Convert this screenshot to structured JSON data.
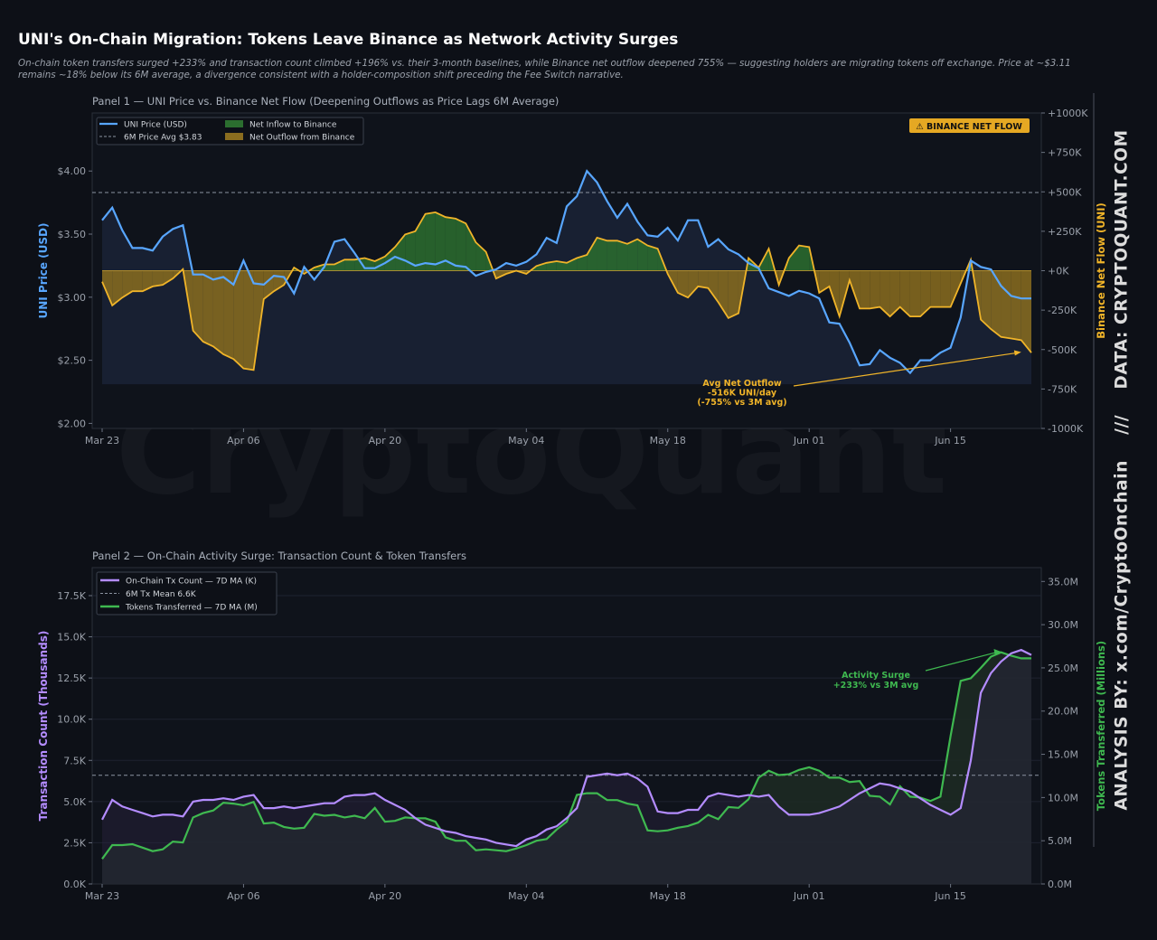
{
  "header": {
    "title": "UNI's On-Chain Migration: Tokens Leave Binance as Network Activity Surges",
    "subtitle_line1": "On-chain token transfers surged +233% and transaction count climbed +196% vs. their 3-month baselines, while Binance net outflow deepened 755% — suggesting holders are migrating tokens off exchange. Price at ~$3.11",
    "subtitle_line2": "remains ~18% below its 6M average, a divergence consistent with a holder-composition shift preceding the Fee Switch narrative."
  },
  "watermark": "CryptoQuant",
  "side_label": {
    "analysis": "ANALYSIS BY: x.com/CryptoOnchain",
    "separator": "///",
    "data": "DATA: CRYPTOQUANT.COM"
  },
  "colors": {
    "background": "#0d1017",
    "panel": "#0f131b",
    "price": "#58a6ff",
    "flow": "#f0b429",
    "inflow_fill": "#2b6e2f",
    "outflow_fill": "#8a6d1f",
    "tx": "#b48cff",
    "tokens": "#3fb950",
    "grid": "#2a2f3a",
    "text": "#9aa0aa"
  },
  "chart_data": [
    {
      "type": "line",
      "panel_title": "Panel 1 — UNI Price vs. Binance Net Flow  (Deepening Outflows as Price Lags 6M Average)",
      "x_tick_labels": [
        "Mar 23",
        "Apr 06",
        "Apr 20",
        "May 04",
        "May 18",
        "Jun 01",
        "Jun 15"
      ],
      "x_range": [
        "2025-03-23",
        "2025-06-22"
      ],
      "ylabel": "UNI Price (USD)",
      "y2label": "Binance Net Flow (UNI)",
      "ylim": [
        1.96,
        4.46
      ],
      "y2lim": [
        -1000,
        1000
      ],
      "y_ticks": [
        "$2.00",
        "$2.50",
        "$3.00",
        "$3.50",
        "$4.00"
      ],
      "y_tick_values": [
        2.0,
        2.5,
        3.0,
        3.5,
        4.0
      ],
      "y2_ticks": [
        "+1000K",
        "+750K",
        "+500K",
        "+250K",
        "+0K",
        "-250K",
        "-500K",
        "-750K",
        "-1000K"
      ],
      "y2_tick_values": [
        1000,
        750,
        500,
        250,
        0,
        -250,
        -500,
        -750,
        -1000
      ],
      "y2_units": "K UNI",
      "badge": "⚠ BINANCE NET FLOW",
      "legend": {
        "placement": "top-left",
        "items": [
          {
            "label": "UNI Price (USD)",
            "kind": "line",
            "color": "#58a6ff"
          },
          {
            "label": "Net Inflow to Binance",
            "kind": "patch",
            "color": "#2b6e2f"
          },
          {
            "label": "6M Price Avg  $3.83",
            "kind": "dashed",
            "color": "#8b93a1"
          },
          {
            "label": "Net Outflow from Binance",
            "kind": "patch",
            "color": "#8a6d1f"
          }
        ]
      },
      "reference_lines": [
        {
          "name": "6M Price Avg",
          "value": 3.83
        }
      ],
      "annotation": {
        "lines": [
          "Avg Net Outflow",
          "-516K UNI/day",
          "(-755% vs 3M avg)"
        ],
        "target_x": "2025-06-22",
        "target_y2": -516
      },
      "series": [
        {
          "name": "UNI Price (USD)",
          "axis": "left",
          "values": [
            3.61,
            3.71,
            3.53,
            3.39,
            3.39,
            3.37,
            3.48,
            3.54,
            3.57,
            3.18,
            3.18,
            3.14,
            3.16,
            3.1,
            3.29,
            3.11,
            3.1,
            3.17,
            3.16,
            3.03,
            3.24,
            3.14,
            3.24,
            3.44,
            3.46,
            3.35,
            3.23,
            3.23,
            3.27,
            3.32,
            3.29,
            3.25,
            3.27,
            3.26,
            3.29,
            3.25,
            3.24,
            3.17,
            3.2,
            3.22,
            3.27,
            3.25,
            3.28,
            3.34,
            3.47,
            3.43,
            3.72,
            3.8,
            4.0,
            3.91,
            3.76,
            3.63,
            3.74,
            3.6,
            3.49,
            3.48,
            3.55,
            3.45,
            3.61,
            3.61,
            3.4,
            3.46,
            3.38,
            3.34,
            3.27,
            3.23,
            3.07,
            3.04,
            3.01,
            3.05,
            3.03,
            2.99,
            2.8,
            2.79,
            2.64,
            2.46,
            2.47,
            2.58,
            2.52,
            2.48,
            2.4,
            2.5,
            2.5,
            2.56,
            2.6,
            2.84,
            3.29,
            3.24,
            3.22,
            3.09,
            3.01,
            2.99,
            2.99
          ]
        },
        {
          "name": "Binance Net Flow (K UNI)",
          "axis": "right",
          "values": [
            -70,
            -220,
            -170,
            -130,
            -130,
            -100,
            -90,
            -50,
            10,
            -380,
            -450,
            -480,
            -530,
            -560,
            -620,
            -630,
            -180,
            -130,
            -90,
            20,
            -20,
            20,
            40,
            40,
            70,
            70,
            80,
            60,
            90,
            150,
            230,
            250,
            360,
            370,
            340,
            330,
            300,
            180,
            120,
            -50,
            -20,
            0,
            -20,
            30,
            50,
            60,
            50,
            80,
            100,
            210,
            190,
            190,
            170,
            200,
            160,
            140,
            -20,
            -140,
            -170,
            -100,
            -110,
            -200,
            -300,
            -270,
            80,
            20,
            140,
            -90,
            80,
            160,
            150,
            -140,
            -100,
            -290,
            -60,
            -240,
            -240,
            -230,
            -290,
            -230,
            -290,
            -290,
            -230,
            -230,
            -230,
            -80,
            70,
            -310,
            -370,
            -420,
            -430,
            -440,
            -520
          ]
        }
      ]
    },
    {
      "type": "line",
      "panel_title": "Panel 2 — On-Chain Activity Surge: Transaction Count & Token Transfers",
      "x_tick_labels": [
        "Mar 23",
        "Apr 06",
        "Apr 20",
        "May 04",
        "May 18",
        "Jun 01",
        "Jun 15"
      ],
      "x_range": [
        "2025-03-23",
        "2025-06-22"
      ],
      "ylabel": "Transaction Count (Thousands)",
      "y2label": "Tokens Transferred (Millions)",
      "ylim": [
        0,
        19200
      ],
      "y2lim": [
        0,
        36.6
      ],
      "y_ticks": [
        "0.0K",
        "2.5K",
        "5.0K",
        "7.5K",
        "10.0K",
        "12.5K",
        "15.0K",
        "17.5K"
      ],
      "y_tick_values": [
        0,
        2500,
        5000,
        7500,
        10000,
        12500,
        15000,
        17500
      ],
      "y2_ticks": [
        "0.0M",
        "5.0M",
        "10.0M",
        "15.0M",
        "20.0M",
        "25.0M",
        "30.0M",
        "35.0M"
      ],
      "y2_tick_values": [
        0,
        5,
        10,
        15,
        20,
        25,
        30,
        35
      ],
      "legend": {
        "placement": "top-left",
        "items": [
          {
            "label": "On-Chain Tx Count — 7D MA (K)",
            "kind": "line",
            "color": "#b48cff"
          },
          {
            "label": "6M Tx Mean  6.6K",
            "kind": "dashed",
            "color": "#8b93a1"
          },
          {
            "label": "Tokens Transferred — 7D MA (M)",
            "kind": "line",
            "color": "#3fb950"
          }
        ]
      },
      "reference_lines": [
        {
          "name": "6M Tx Mean",
          "value": 6600
        }
      ],
      "annotation": {
        "lines": [
          "Activity Surge",
          "+233% vs 3M avg"
        ],
        "target_x": "2025-06-20",
        "target_y": 14100
      },
      "series": [
        {
          "name": "On-Chain Tx Count — 7D MA (K)",
          "axis": "left",
          "values": [
            3900,
            5100,
            4700,
            4500,
            4300,
            4100,
            4200,
            4200,
            4100,
            5000,
            5100,
            5100,
            5200,
            5100,
            5300,
            5400,
            4600,
            4600,
            4700,
            4600,
            4700,
            4800,
            4900,
            4900,
            5300,
            5400,
            5400,
            5500,
            5100,
            4800,
            4500,
            4000,
            3600,
            3400,
            3200,
            3100,
            2900,
            2800,
            2700,
            2500,
            2400,
            2300,
            2700,
            2900,
            3300,
            3500,
            4000,
            4600,
            6500,
            6600,
            6700,
            6600,
            6700,
            6400,
            5900,
            4400,
            4300,
            4300,
            4500,
            4500,
            5300,
            5500,
            5400,
            5300,
            5400,
            5300,
            5400,
            4700,
            4200,
            4200,
            4200,
            4300,
            4500,
            4700,
            5100,
            5500,
            5800,
            6100,
            6000,
            5800,
            5600,
            5200,
            4800,
            4500,
            4200,
            4600,
            7500,
            11600,
            12800,
            13500,
            14000,
            14200,
            13900
          ]
        },
        {
          "name": "Tokens Transferred — 7D MA (M)",
          "axis": "right",
          "values": [
            2.9,
            4.5,
            4.5,
            4.6,
            4.2,
            3.8,
            4.0,
            4.9,
            4.8,
            7.7,
            8.2,
            8.5,
            9.4,
            9.3,
            9.1,
            9.5,
            7.0,
            7.1,
            6.6,
            6.4,
            6.5,
            8.1,
            7.9,
            8.0,
            7.7,
            7.9,
            7.6,
            8.8,
            7.2,
            7.3,
            7.7,
            7.6,
            7.6,
            7.2,
            5.4,
            5.0,
            5.0,
            3.9,
            4.0,
            3.9,
            3.8,
            4.1,
            4.5,
            5.0,
            5.2,
            6.3,
            7.2,
            10.3,
            10.5,
            10.5,
            9.7,
            9.7,
            9.3,
            9.1,
            6.2,
            6.1,
            6.2,
            6.5,
            6.7,
            7.1,
            8.0,
            7.5,
            8.9,
            8.8,
            9.8,
            12.3,
            13.1,
            12.6,
            12.7,
            13.2,
            13.5,
            13.1,
            12.3,
            12.3,
            11.8,
            11.9,
            10.2,
            10.1,
            9.2,
            11.3,
            10.1,
            10.0,
            9.6,
            10.1,
            17.1,
            23.5,
            23.8,
            25.0,
            26.3,
            26.8,
            26.4,
            26.1,
            26.1
          ]
        }
      ]
    }
  ]
}
